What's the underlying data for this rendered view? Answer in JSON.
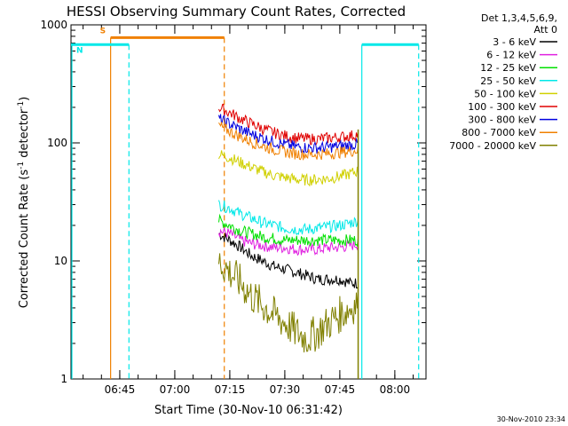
{
  "chart_data": {
    "type": "line",
    "title": "HESSI Observing Summary Count Rates, Corrected",
    "xlabel": "Start Time (30-Nov-10 06:31:42)",
    "ylabel": "Corrected Count Rate (s⁻¹ detector⁻¹)",
    "y_scale": "log",
    "ylim": [
      1,
      1000
    ],
    "xlim": [
      "06:31:42",
      "08:08:30"
    ],
    "x_ticks": [
      "06:45",
      "07:00",
      "07:15",
      "07:30",
      "07:45",
      "08:00"
    ],
    "y_ticks": [
      "1",
      "10",
      "100",
      "1000"
    ],
    "legend_title": [
      "Det 1,3,4,5,6,9,",
      "Att 0"
    ],
    "legend_placement": "right",
    "timestamp": "30-Nov-2010 23:34",
    "x": [
      "07:12",
      "07:15",
      "07:18",
      "07:21",
      "07:24",
      "07:27",
      "07:30",
      "07:33",
      "07:36",
      "07:39",
      "07:42",
      "07:45",
      "07:48",
      "07:50"
    ],
    "series": [
      {
        "name": "3 - 6 keV",
        "color": "#000000",
        "values": [
          17,
          15,
          13,
          11,
          10,
          9,
          8.5,
          8,
          7.5,
          7,
          7,
          7,
          6.5,
          6.5
        ]
      },
      {
        "name": "6 - 12 keV",
        "color": "#e020e0",
        "values": [
          18,
          17,
          15,
          14,
          13.5,
          13,
          13,
          12.5,
          12.5,
          12.5,
          13,
          13,
          13.5,
          14
        ]
      },
      {
        "name": "12 - 25 keV",
        "color": "#00e000",
        "values": [
          22,
          20,
          18,
          17,
          16,
          15.5,
          15,
          15,
          15,
          15,
          15,
          15,
          15,
          15
        ]
      },
      {
        "name": "25 - 50 keV",
        "color": "#00e8e8",
        "values": [
          30,
          28,
          25,
          23,
          21,
          20,
          19,
          18.5,
          18.5,
          19,
          19.5,
          20,
          21,
          22
        ]
      },
      {
        "name": "50 - 100 keV",
        "color": "#d0d000",
        "values": [
          80,
          75,
          68,
          62,
          57,
          53,
          51,
          49,
          48.5,
          49,
          50,
          52,
          55,
          58
        ]
      },
      {
        "name": "100 - 300 keV",
        "color": "#e00000",
        "values": [
          200,
          180,
          160,
          145,
          132,
          122,
          115,
          110,
          108,
          108,
          110,
          112,
          115,
          118
        ]
      },
      {
        "name": "300 - 800 keV",
        "color": "#0000e0",
        "values": [
          160,
          145,
          130,
          118,
          110,
          102,
          97,
          93,
          91,
          91,
          92,
          94,
          96,
          98
        ]
      },
      {
        "name": "800 - 7000 keV",
        "color": "#f08000",
        "values": [
          140,
          125,
          112,
          102,
          94,
          88,
          84,
          81,
          80,
          80,
          81,
          83,
          85,
          87
        ]
      },
      {
        "name": "7000 - 20000 keV",
        "color": "#808000",
        "values": [
          10,
          8,
          6.5,
          5,
          4.2,
          3.5,
          3,
          2.5,
          2.2,
          2.5,
          3,
          3.5,
          4,
          4.5
        ]
      }
    ],
    "markers": [
      {
        "label": "S",
        "color": "#f08000",
        "level": 780,
        "start": "06:42:30",
        "end": "07:13:30"
      },
      {
        "label": "N",
        "color": "#00e8e8",
        "level": 680,
        "start": "06:31:42",
        "end": "06:47:30"
      },
      {
        "label": "",
        "color": "#00e8e8",
        "level": 680,
        "start": "07:51:00",
        "end": "08:06:30"
      }
    ]
  }
}
